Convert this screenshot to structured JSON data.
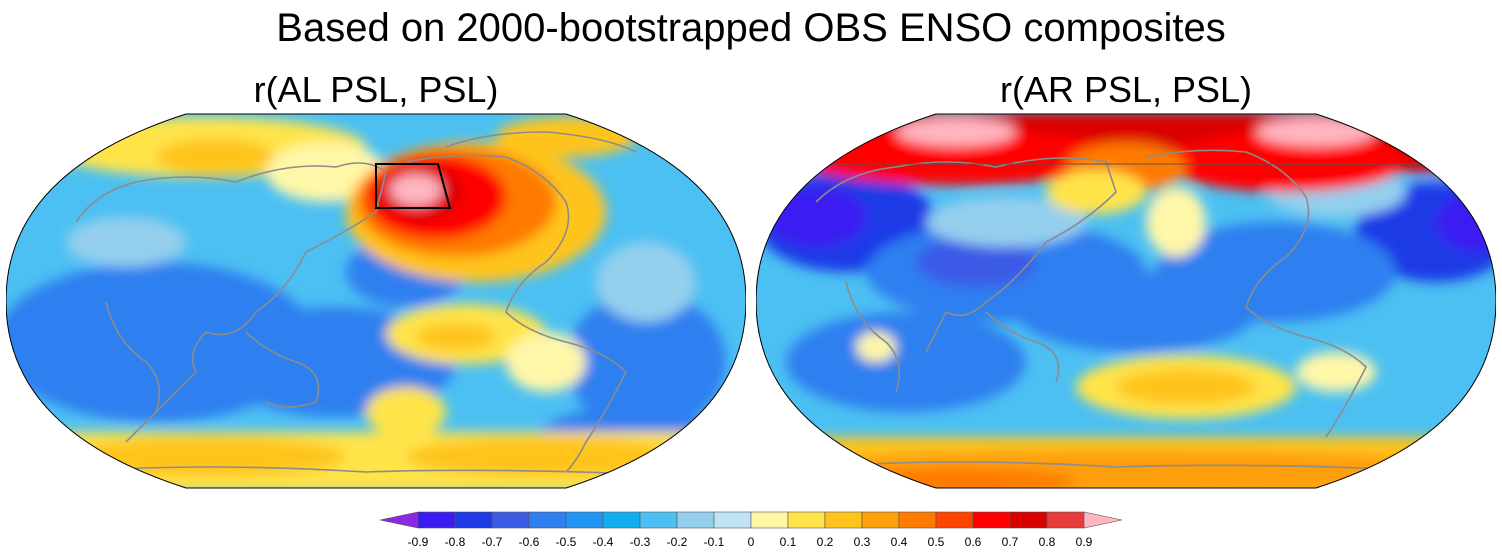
{
  "title": "Based on 2000-bootstrapped OBS ENSO composites",
  "panels": [
    {
      "title": "r(AL PSL, PSL)"
    },
    {
      "title": "r(AR PSL, PSL)"
    }
  ],
  "colorbar": {
    "labels": [
      "-0.9",
      "-0.8",
      "-0.7",
      "-0.6",
      "-0.5",
      "-0.4",
      "-0.3",
      "-0.2",
      "-0.1",
      "0",
      "0.1",
      "0.2",
      "0.3",
      "0.4",
      "0.5",
      "0.6",
      "0.7",
      "0.8",
      "0.9"
    ],
    "colors": [
      "#8a2be2",
      "#3a1cf2",
      "#1e3ae6",
      "#3a5ae6",
      "#2f7ff0",
      "#1f94f2",
      "#12aef2",
      "#4cc0f2",
      "#94cfee",
      "#bfe3f5",
      "#fff7a8",
      "#ffe44a",
      "#ffc41c",
      "#ff9f0a",
      "#ff7a00",
      "#ff4400",
      "#ff0000",
      "#d90000",
      "#e83c3c",
      "#ffb6c1"
    ]
  },
  "colors": {
    "land_outline": "#8c8c8c",
    "box": "#000000"
  }
}
